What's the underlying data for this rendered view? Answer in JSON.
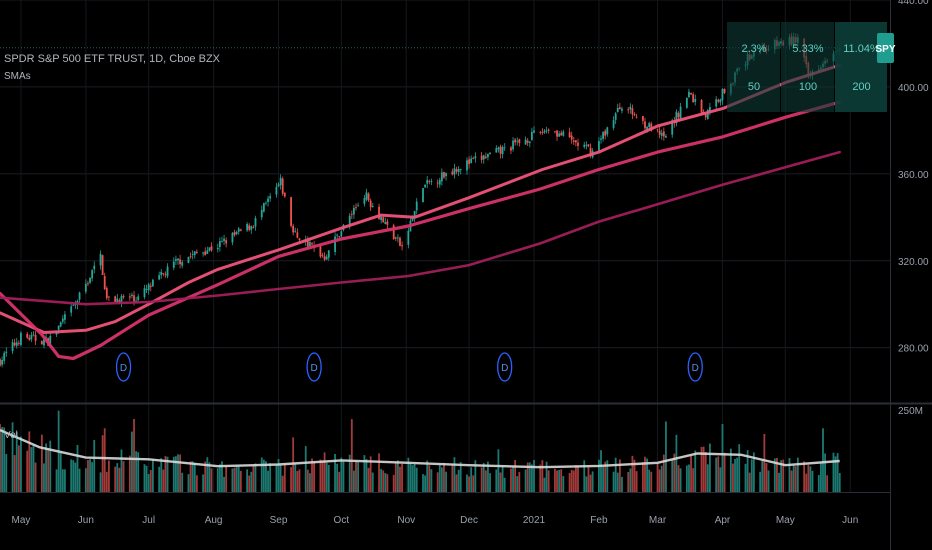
{
  "header": {
    "title": "SPDR S&P 500 ETF TRUST, 1D, Cboe BZX",
    "indicator": "SMAs",
    "volume_label": "Vol"
  },
  "symbol_badge": "SPY",
  "last_price_marker": 418,
  "colors": {
    "background": "#000000",
    "up_candle": "#26a69a",
    "down_candle": "#ef5350",
    "sma_50": "#f0537a",
    "sma_100": "#d6336c",
    "sma_200": "#a01f5a",
    "volume_ma": "#d9d9d9",
    "table_bg": "#0d3b36",
    "table_text": "#5fd0c4",
    "badge_bg": "#1f9e8f",
    "dividend_marker": "#2962ff"
  },
  "sma_table": [
    {
      "pct": "2.3%",
      "period": "50"
    },
    {
      "pct": "5.33%",
      "period": "100"
    },
    {
      "pct": "11.04%",
      "period": "200"
    }
  ],
  "dividend_marker_label": "D",
  "dividend_dates": [
    "2020-06-19",
    "2020-09-18",
    "2020-12-18",
    "2021-03-19"
  ],
  "volume_axis_label": "250M",
  "chart_data": [
    {
      "type": "candlestick",
      "title": "SPDR S&P 500 ETF TRUST, 1D, Cboe BZX",
      "ylim": [
        255,
        440
      ],
      "y_ticks": [
        280,
        320,
        360,
        400,
        440
      ],
      "y_tick_labels": [
        "280.00",
        "320.00",
        "360.00",
        "400.00",
        "440.00"
      ],
      "x_tick_labels": [
        "May",
        "Jun",
        "Jul",
        "Aug",
        "Sep",
        "Oct",
        "Nov",
        "Dec",
        "2021",
        "Feb",
        "Mar",
        "Apr",
        "May",
        "Jun"
      ],
      "price_path": [
        [
          "2020-04-21",
          274
        ],
        [
          "2020-05-01",
          285
        ],
        [
          "2020-05-14",
          283
        ],
        [
          "2020-05-27",
          300
        ],
        [
          "2020-06-08",
          322
        ],
        [
          "2020-06-11",
          302
        ],
        [
          "2020-06-26",
          303
        ],
        [
          "2020-07-15",
          320
        ],
        [
          "2020-08-03",
          327
        ],
        [
          "2020-08-20",
          337
        ],
        [
          "2020-09-02",
          356
        ],
        [
          "2020-09-08",
          333
        ],
        [
          "2020-09-23",
          322
        ],
        [
          "2020-10-12",
          351
        ],
        [
          "2020-10-30",
          326
        ],
        [
          "2020-11-09",
          354
        ],
        [
          "2020-11-25",
          363
        ],
        [
          "2020-12-15",
          370
        ],
        [
          "2021-01-08",
          381
        ],
        [
          "2021-01-29",
          370
        ],
        [
          "2021-02-12",
          392
        ],
        [
          "2021-03-04",
          376
        ],
        [
          "2021-03-16",
          397
        ],
        [
          "2021-03-24",
          387
        ],
        [
          "2021-04-16",
          417
        ],
        [
          "2021-05-07",
          422
        ],
        [
          "2021-05-12",
          405
        ],
        [
          "2021-05-27",
          420
        ]
      ],
      "series": [
        {
          "name": "SMA 50",
          "color": "#f0537a",
          "points": [
            [
              "2020-04-21",
              296
            ],
            [
              "2020-05-12",
              287
            ],
            [
              "2020-06-01",
              288
            ],
            [
              "2020-06-15",
              292
            ],
            [
              "2020-07-01",
              300
            ],
            [
              "2020-07-20",
              310
            ],
            [
              "2020-08-03",
              316
            ],
            [
              "2020-09-01",
              325
            ],
            [
              "2020-10-01",
              335
            ],
            [
              "2020-10-20",
              341
            ],
            [
              "2020-11-05",
              340
            ],
            [
              "2020-12-01",
              349
            ],
            [
              "2021-01-05",
              362
            ],
            [
              "2021-02-01",
              370
            ],
            [
              "2021-03-01",
              382
            ],
            [
              "2021-04-01",
              390
            ],
            [
              "2021-05-01",
              402
            ],
            [
              "2021-05-27",
              410
            ]
          ]
        },
        {
          "name": "SMA 100",
          "color": "#d6336c",
          "points": [
            [
              "2020-04-21",
              305
            ],
            [
              "2020-05-11",
              286
            ],
            [
              "2020-05-19",
              276
            ],
            [
              "2020-05-26",
              275
            ],
            [
              "2020-06-08",
              281
            ],
            [
              "2020-07-01",
              295
            ],
            [
              "2020-08-03",
              309
            ],
            [
              "2020-09-01",
              322
            ],
            [
              "2020-10-01",
              330
            ],
            [
              "2020-11-02",
              336
            ],
            [
              "2020-12-01",
              344
            ],
            [
              "2021-01-04",
              353
            ],
            [
              "2021-02-01",
              362
            ],
            [
              "2021-03-01",
              370
            ],
            [
              "2021-04-01",
              377
            ],
            [
              "2021-05-01",
              386
            ],
            [
              "2021-05-27",
              393
            ]
          ]
        },
        {
          "name": "SMA 200",
          "color": "#a01f5a",
          "points": [
            [
              "2020-04-21",
              303
            ],
            [
              "2020-06-01",
              300
            ],
            [
              "2020-07-01",
              301
            ],
            [
              "2020-08-03",
              304
            ],
            [
              "2020-09-01",
              307
            ],
            [
              "2020-10-01",
              310
            ],
            [
              "2020-11-02",
              313
            ],
            [
              "2020-12-01",
              318
            ],
            [
              "2021-01-04",
              328
            ],
            [
              "2021-02-01",
              338
            ],
            [
              "2021-03-01",
              346
            ],
            [
              "2021-04-01",
              355
            ],
            [
              "2021-05-01",
              363
            ],
            [
              "2021-05-27",
              370
            ]
          ]
        }
      ]
    },
    {
      "type": "bar",
      "title": "Vol",
      "ylim": [
        0,
        250
      ],
      "unit": "M shares",
      "volume_ma_points": [
        [
          "2020-04-21",
          180
        ],
        [
          "2020-05-10",
          130
        ],
        [
          "2020-06-01",
          100
        ],
        [
          "2020-07-01",
          95
        ],
        [
          "2020-08-03",
          75
        ],
        [
          "2020-09-01",
          80
        ],
        [
          "2020-10-01",
          92
        ],
        [
          "2020-11-02",
          85
        ],
        [
          "2020-12-01",
          78
        ],
        [
          "2021-01-04",
          72
        ],
        [
          "2021-02-01",
          76
        ],
        [
          "2021-03-01",
          85
        ],
        [
          "2021-03-20",
          112
        ],
        [
          "2021-04-10",
          108
        ],
        [
          "2021-05-01",
          78
        ],
        [
          "2021-05-27",
          90
        ]
      ]
    }
  ]
}
